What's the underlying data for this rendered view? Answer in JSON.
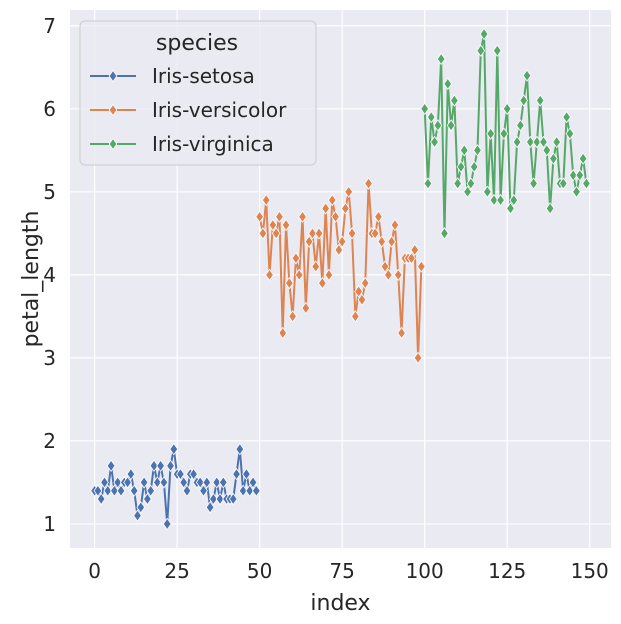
{
  "chart_data": {
    "type": "line",
    "title": "",
    "xlabel": "index",
    "ylabel": "petal_length",
    "xlim": [
      -7.45,
      156.45
    ],
    "ylim": [
      0.71,
      7.19
    ],
    "xticks": [
      0,
      25,
      50,
      75,
      100,
      125,
      150
    ],
    "yticks": [
      1,
      2,
      3,
      4,
      5,
      6,
      7
    ],
    "grid": true,
    "legend": {
      "title": "species",
      "position": "top-left"
    },
    "marker": "diamond",
    "colors": {
      "background": "#eaeaf2",
      "grid": "#ffffff",
      "text": "#262626"
    },
    "series": [
      {
        "name": "Iris-setosa",
        "color": "#4c72b0",
        "x_start": 0,
        "values": [
          1.4,
          1.4,
          1.3,
          1.5,
          1.4,
          1.7,
          1.4,
          1.5,
          1.4,
          1.5,
          1.5,
          1.6,
          1.4,
          1.1,
          1.2,
          1.5,
          1.3,
          1.4,
          1.7,
          1.5,
          1.7,
          1.5,
          1.0,
          1.7,
          1.9,
          1.6,
          1.6,
          1.5,
          1.4,
          1.6,
          1.6,
          1.5,
          1.5,
          1.4,
          1.5,
          1.2,
          1.3,
          1.5,
          1.3,
          1.5,
          1.3,
          1.3,
          1.3,
          1.6,
          1.9,
          1.4,
          1.6,
          1.4,
          1.5,
          1.4
        ]
      },
      {
        "name": "Iris-versicolor",
        "color": "#dd8452",
        "x_start": 50,
        "values": [
          4.7,
          4.5,
          4.9,
          4.0,
          4.6,
          4.5,
          4.7,
          3.3,
          4.6,
          3.9,
          3.5,
          4.2,
          4.0,
          4.7,
          3.6,
          4.4,
          4.5,
          4.1,
          4.5,
          3.9,
          4.8,
          4.0,
          4.9,
          4.7,
          4.3,
          4.4,
          4.8,
          5.0,
          4.5,
          3.5,
          3.8,
          3.7,
          3.9,
          5.1,
          4.5,
          4.5,
          4.7,
          4.4,
          4.1,
          4.0,
          4.4,
          4.6,
          4.0,
          3.3,
          4.2,
          4.2,
          4.2,
          4.3,
          3.0,
          4.1
        ]
      },
      {
        "name": "Iris-virginica",
        "color": "#55a868",
        "x_start": 100,
        "values": [
          6.0,
          5.1,
          5.9,
          5.6,
          5.8,
          6.6,
          4.5,
          6.3,
          5.8,
          6.1,
          5.1,
          5.3,
          5.5,
          5.0,
          5.1,
          5.3,
          5.5,
          6.7,
          6.9,
          5.0,
          5.7,
          4.9,
          6.7,
          4.9,
          5.7,
          6.0,
          4.8,
          4.9,
          5.6,
          5.8,
          6.1,
          6.4,
          5.6,
          5.1,
          5.6,
          6.1,
          5.6,
          5.5,
          4.8,
          5.4,
          5.6,
          5.1,
          5.1,
          5.9,
          5.7,
          5.2,
          5.0,
          5.2,
          5.4,
          5.1
        ]
      }
    ]
  }
}
